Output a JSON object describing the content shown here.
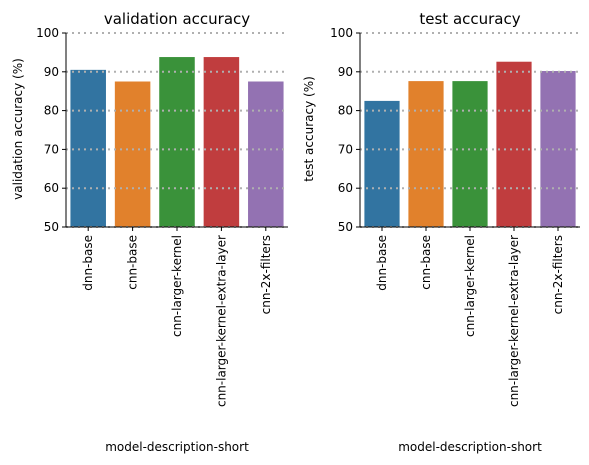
{
  "chart_data": [
    {
      "type": "bar",
      "title": "validation accuracy",
      "xlabel": "model-description-short",
      "ylabel": "validation accuracy (%)",
      "ylim": [
        50,
        100
      ],
      "yticks": [
        50,
        60,
        70,
        80,
        90,
        100
      ],
      "grid": "horizontal dotted",
      "categories": [
        "dnn-base",
        "cnn-base",
        "cnn-larger-kernel",
        "cnn-larger-kernel-extra-layer",
        "cnn-2x-filters"
      ],
      "values": [
        90.5,
        87.5,
        93.8,
        93.8,
        87.5
      ],
      "colors": [
        "#3274a1",
        "#e1812c",
        "#3a923a",
        "#c03d3e",
        "#9372b2"
      ]
    },
    {
      "type": "bar",
      "title": "test accuracy",
      "xlabel": "model-description-short",
      "ylabel": "test accuracy (%)",
      "ylim": [
        50,
        100
      ],
      "yticks": [
        50,
        60,
        70,
        80,
        90,
        100
      ],
      "grid": "horizontal dotted",
      "categories": [
        "dnn-base",
        "cnn-base",
        "cnn-larger-kernel",
        "cnn-larger-kernel-extra-layer",
        "cnn-2x-filters"
      ],
      "values": [
        82.5,
        87.6,
        87.6,
        92.6,
        90.2
      ],
      "colors": [
        "#3274a1",
        "#e1812c",
        "#3a923a",
        "#c03d3e",
        "#9372b2"
      ]
    }
  ]
}
